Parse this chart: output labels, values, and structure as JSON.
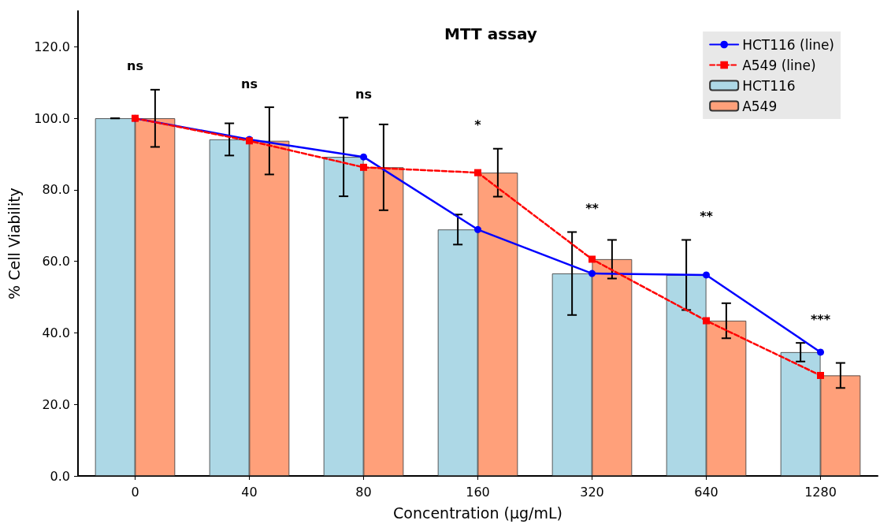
{
  "chart_data": {
    "type": "bar",
    "title": "MTT assay",
    "xlabel": "Concentration (µg/mL)",
    "ylabel": "% Cell Viability",
    "categories": [
      "0",
      "40",
      "80",
      "160",
      "320",
      "640",
      "1280"
    ],
    "series": [
      {
        "name": "HCT116 (line)",
        "type": "line",
        "color": "#0000ff",
        "marker": "circle",
        "line_style": "solid",
        "values": [
          100,
          94.1,
          89.2,
          68.9,
          56.6,
          56.2,
          34.6
        ]
      },
      {
        "name": "A549 (line)",
        "type": "line",
        "color": "#ff0000",
        "marker": "square",
        "line_style": "dashed",
        "values": [
          100,
          93.7,
          86.3,
          84.8,
          60.6,
          43.4,
          28.1
        ]
      },
      {
        "name": "HCT116",
        "color": "#add8e6",
        "values": [
          100,
          94.1,
          89.2,
          68.9,
          56.6,
          56.2,
          34.6
        ],
        "errors": [
          0,
          4.5,
          11,
          4.2,
          11.6,
          9.8,
          2.6
        ]
      },
      {
        "name": "A549",
        "color": "#ffa07a",
        "values": [
          100,
          93.7,
          86.3,
          84.8,
          60.6,
          43.4,
          28.1
        ],
        "errors": [
          8,
          9.4,
          12,
          6.7,
          5.4,
          4.9,
          3.5
        ]
      }
    ],
    "annotations": [
      "ns",
      "ns",
      "ns",
      "*",
      "**",
      "**",
      "***"
    ],
    "ylim": [
      0,
      130
    ],
    "yticks": [
      {
        "value": 0,
        "label": "0.0"
      },
      {
        "value": 20,
        "label": "20.0"
      },
      {
        "value": 40,
        "label": "40.0"
      },
      {
        "value": 60,
        "label": "60.0"
      },
      {
        "value": 80,
        "label": "80.0"
      },
      {
        "value": 100,
        "label": "100.0"
      },
      {
        "value": 120,
        "label": "120.0"
      }
    ],
    "legend": "top right",
    "grid": false
  }
}
